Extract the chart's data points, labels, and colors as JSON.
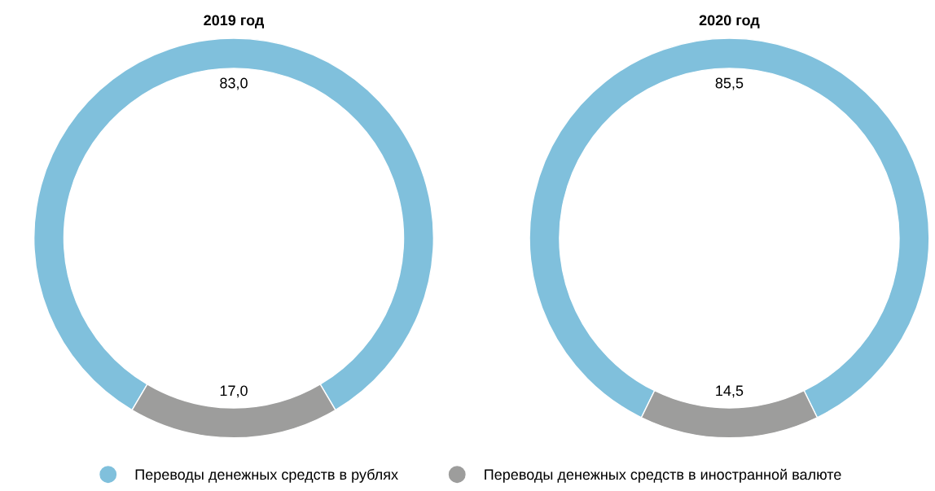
{
  "chart_data": [
    {
      "type": "donut",
      "title": "2019 год",
      "categories": [
        "Переводы денежных средств в рублях",
        "Переводы денежных средств в иностранной валюте"
      ],
      "values": [
        83.0,
        17.0
      ],
      "colors": [
        "#80c0dc",
        "#9d9d9c"
      ],
      "value_labels": [
        "83,0",
        "17,0"
      ],
      "legend": "bottom"
    },
    {
      "type": "donut",
      "title": "2020 год",
      "categories": [
        null,
        null
      ],
      "values": [
        85.5,
        14.5
      ],
      "colors": [
        "#80c0dc",
        "#9d9d9c"
      ],
      "value_labels": [
        "85,5",
        "14,5"
      ]
    }
  ]
}
